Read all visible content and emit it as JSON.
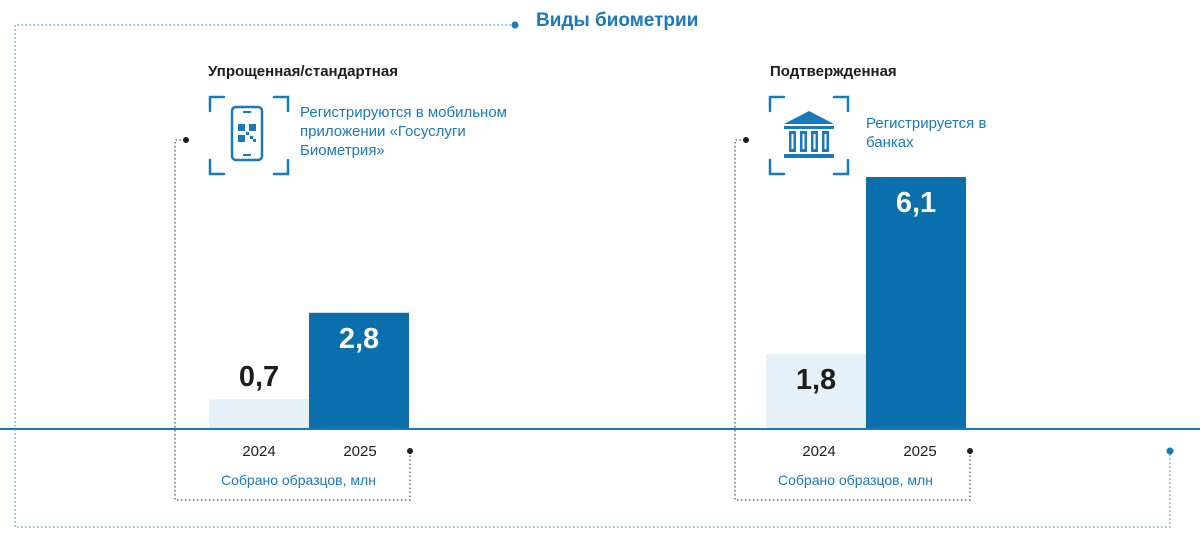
{
  "header": {
    "title": "Виды биометрии"
  },
  "colors": {
    "accent": "#1a79bb",
    "bar_prev": "#e5f0f8",
    "bar_curr": "#0b6fae",
    "text_dark": "#1d1d1b",
    "dotted": "#1a79bb"
  },
  "groups": [
    {
      "heading": "Упрощенная/стандартная",
      "icon": "phone-qr-icon",
      "description": "Регистрируются в мобильном приложении «Госуслуги Биометрия»",
      "unit_label": "Собрано образцов, млн"
    },
    {
      "heading": "Подтвержденная",
      "icon": "bank-building-icon",
      "description": "Регистрируется в банках",
      "unit_label": "Собрано образцов, млн"
    }
  ],
  "chart_data": [
    {
      "type": "bar",
      "title": "Упрощенная/стандартная",
      "categories": [
        "2024",
        "2025"
      ],
      "values": [
        0.7,
        2.8
      ],
      "value_labels": [
        "0,7",
        "2,8"
      ],
      "ylabel": "Собрано образцов, млн",
      "ylim": [
        0,
        6.1
      ],
      "grid": false
    },
    {
      "type": "bar",
      "title": "Подтвержденная",
      "categories": [
        "2024",
        "2025"
      ],
      "values": [
        1.8,
        6.1
      ],
      "value_labels": [
        "1,8",
        "6,1"
      ],
      "ylabel": "Собрано образцов, млн",
      "ylim": [
        0,
        6.1
      ],
      "grid": false
    }
  ]
}
